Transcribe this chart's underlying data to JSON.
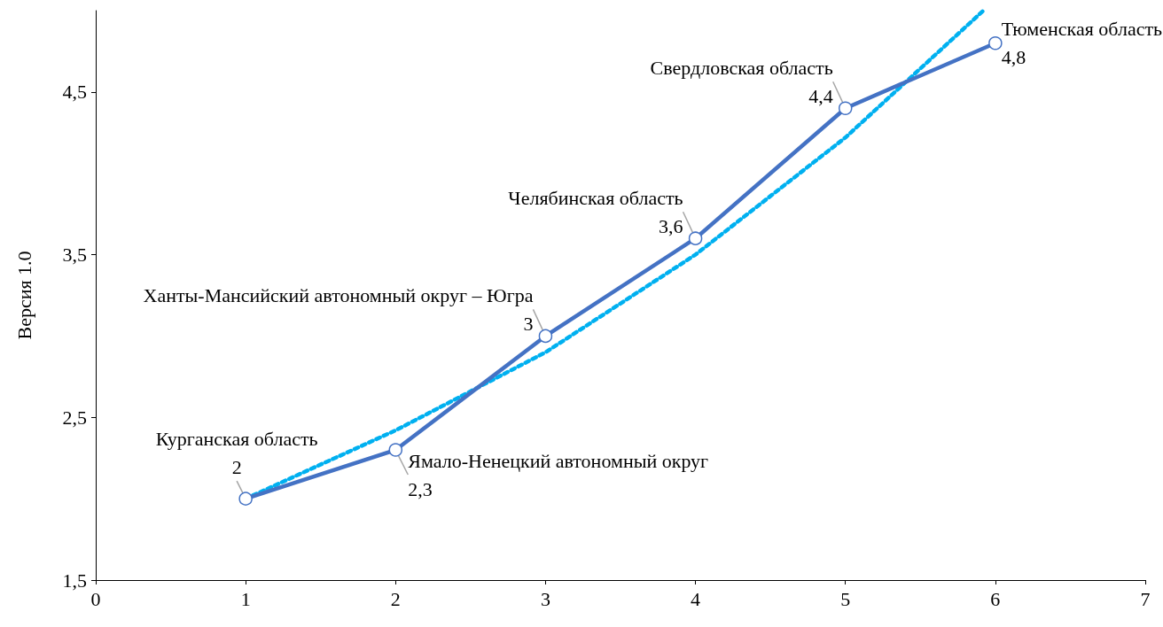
{
  "chart_data": {
    "type": "line",
    "ylabel": "Версия 1.0",
    "xlim": [
      0,
      7
    ],
    "xticks": [
      0,
      1,
      2,
      3,
      4,
      5,
      6,
      7
    ],
    "ylim": [
      1.5,
      5
    ],
    "yticks": [
      {
        "value": 1.5,
        "label": "1,5"
      },
      {
        "value": 2.5,
        "label": "2,5"
      },
      {
        "value": 3.5,
        "label": "3,5"
      },
      {
        "value": 4.5,
        "label": "4,5"
      }
    ],
    "series": [
      {
        "color": "#4472c4",
        "x": [
          1,
          2,
          3,
          4,
          5,
          6
        ],
        "values": [
          2,
          2.3,
          3,
          3.6,
          4.4,
          4.8
        ],
        "value_labels": [
          "2",
          "2,3",
          "3",
          "3,6",
          "4,4",
          "4,8"
        ],
        "marker": "circle",
        "line_style": "solid"
      },
      {
        "color": "#00b0f0",
        "x": [
          1,
          2,
          3,
          4,
          5,
          5.92
        ],
        "values": [
          2,
          2.42,
          2.9,
          3.5,
          4.22,
          5
        ],
        "marker": "none",
        "line_style": "dotted"
      }
    ],
    "annotations": [
      {
        "text": "Курганская область",
        "x": 1,
        "y": 2
      },
      {
        "text": "Ямало-Ненецкий автономный округ",
        "x": 2,
        "y": 2.3
      },
      {
        "text": "Ханты-Мансийский автономный округ – Югра",
        "x": 3,
        "y": 3
      },
      {
        "text": "Челябинская область",
        "x": 4,
        "y": 3.6
      },
      {
        "text": "Свердловская область",
        "x": 5,
        "y": 4.4
      },
      {
        "text": "Тюменская область",
        "x": 6,
        "y": 4.8
      }
    ],
    "grid": false
  }
}
